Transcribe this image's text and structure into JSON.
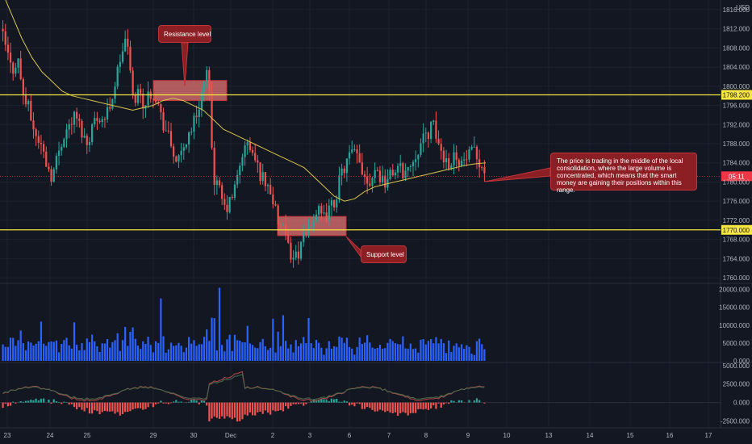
{
  "chart_data": {
    "type": "candlestick",
    "currency": "USD",
    "x_ticks": [
      "23",
      "24",
      "25",
      "29",
      "30",
      "Dec",
      "2",
      "3",
      "6",
      "7",
      "8",
      "9",
      "10",
      "13",
      "14",
      "15",
      "16",
      "17"
    ],
    "price_axis": {
      "ticks": [
        "1816.000",
        "1812.000",
        "1808.000",
        "1804.000",
        "1800.000",
        "1796.000",
        "1792.000",
        "1788.000",
        "1784.000",
        "1780.000",
        "1776.000",
        "1772.000",
        "1768.000",
        "1764.000",
        "1760.000"
      ],
      "ylim": [
        1759,
        1817
      ]
    },
    "volume_axis": {
      "ticks": [
        "20000.000",
        "15000.000",
        "10000.000",
        "5000.000",
        "0.000"
      ],
      "ylim": [
        0,
        21500
      ]
    },
    "macd_axis": {
      "ticks": [
        "5000.000",
        "2500.000",
        "0.000",
        "-2500.000"
      ],
      "ylim": [
        -3200,
        5300
      ]
    },
    "horizontal_levels": [
      {
        "value": 1798.2,
        "label": "1798.200",
        "color": "#f5e642"
      },
      {
        "value": 1770.0,
        "label": "1770.000",
        "color": "#f5e642"
      }
    ],
    "current_price": {
      "value": 1781.2,
      "label": "05:11",
      "color": "#f23645"
    },
    "zones": [
      {
        "x_range": [
          "29",
          "30"
        ],
        "y_range": [
          1797.0,
          1801.2
        ],
        "name": "resistance-zone"
      },
      {
        "x_range": [
          "2",
          "3"
        ],
        "y_range": [
          1768.8,
          1772.8
        ],
        "name": "support-zone"
      }
    ],
    "annotations": [
      {
        "text": "Resistance level"
      },
      {
        "text": "Support level"
      },
      {
        "text": "The price is trading in the middle of the local consolidation, where the large volume is concentrated, which means that the smart money are gaining their positions within this range."
      }
    ],
    "price_path": [
      1812,
      1808,
      1803,
      1806,
      1798,
      1795,
      1790,
      1788,
      1784,
      1781,
      1786,
      1790,
      1792,
      1794,
      1791,
      1788,
      1792,
      1794,
      1793,
      1796,
      1801,
      1807,
      1810,
      1797,
      1799,
      1796,
      1799,
      1798,
      1793,
      1790,
      1786,
      1784,
      1788,
      1791,
      1794,
      1799,
      1803,
      1781,
      1778,
      1774,
      1776,
      1780,
      1786,
      1788,
      1785,
      1782,
      1780,
      1778,
      1772,
      1770,
      1766,
      1764,
      1766,
      1769,
      1772,
      1774,
      1772,
      1774,
      1776,
      1781,
      1784,
      1786,
      1785,
      1782,
      1780,
      1783,
      1781,
      1780,
      1782,
      1783,
      1782,
      1783,
      1786,
      1788,
      1790,
      1792,
      1788,
      1785,
      1784,
      1786,
      1784,
      1785,
      1786,
      1785,
      1782
    ],
    "ma_path": [
      1820,
      1815,
      1810,
      1806,
      1803,
      1801,
      1799,
      1798,
      1797.5,
      1797,
      1796.5,
      1796,
      1795.5,
      1795,
      1795.5,
      1796,
      1797,
      1797.5,
      1797,
      1796,
      1795,
      1793,
      1791,
      1790,
      1789,
      1788,
      1787,
      1786,
      1785,
      1784,
      1783,
      1781,
      1779,
      1777,
      1776,
      1776.5,
      1778,
      1779,
      1779.5,
      1780,
      1780.5,
      1781,
      1781.5,
      1782,
      1782.5,
      1783,
      1783.5,
      1783.8,
      1784
    ]
  }
}
